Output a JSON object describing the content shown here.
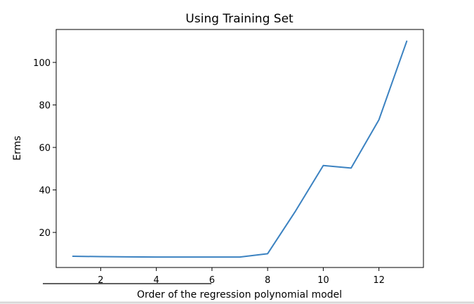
{
  "chart_data": {
    "type": "line",
    "title": "Using Training Set",
    "xlabel": "Order of the regression polynomial model",
    "ylabel": "Erms",
    "xlim": [
      0.4,
      13.6
    ],
    "ylim": [
      3.5,
      115.5
    ],
    "xticks": [
      2,
      4,
      6,
      8,
      10,
      12
    ],
    "yticks": [
      20,
      40,
      60,
      80,
      100
    ],
    "grid": false,
    "colors": {
      "series": "#3b82c1",
      "axes": "#000000"
    },
    "series": [
      {
        "x": [
          1,
          2,
          3,
          4,
          5,
          6,
          7,
          8,
          9,
          10,
          11,
          12,
          13
        ],
        "values": [
          8.8,
          8.6,
          8.5,
          8.4,
          8.4,
          8.4,
          8.4,
          10.0,
          30.0,
          51.5,
          50.3,
          73.0,
          110.0
        ]
      }
    ]
  }
}
